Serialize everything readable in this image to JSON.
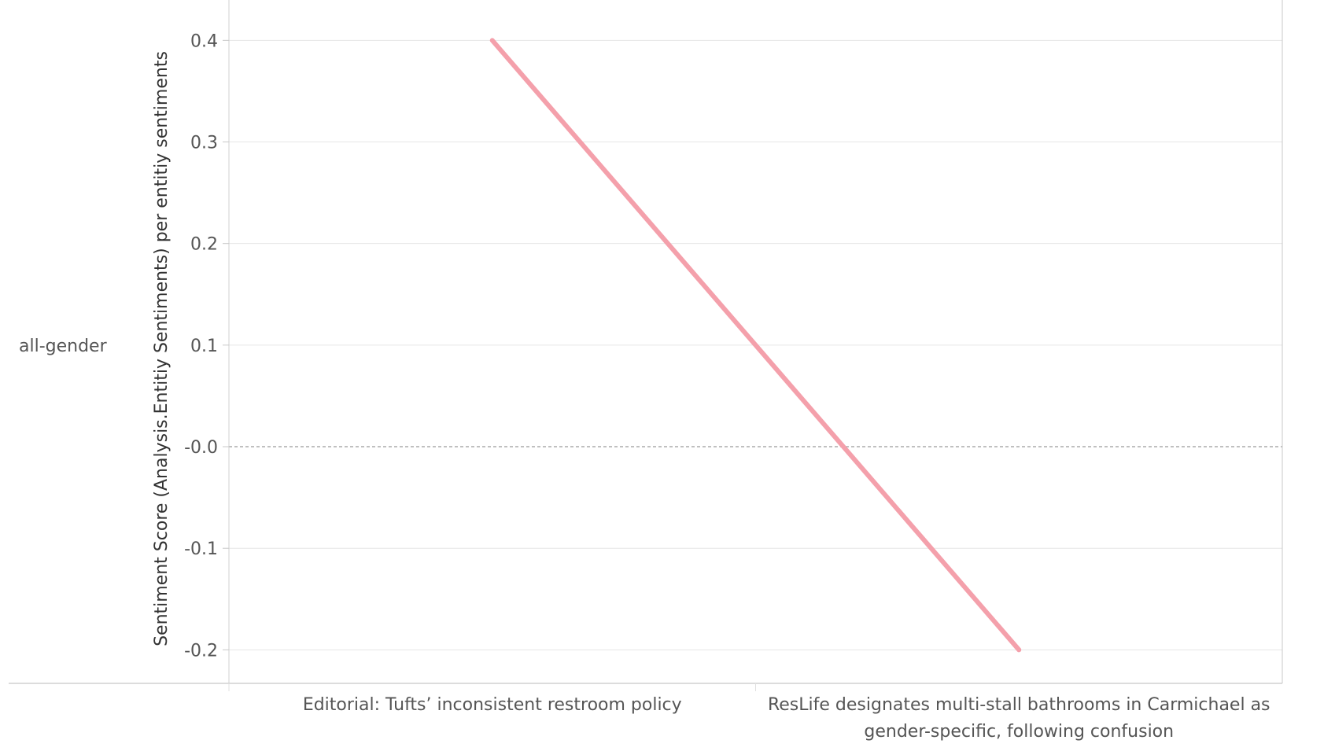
{
  "chart_data": {
    "type": "line",
    "row_label": "all-gender",
    "ylabel": "Sentiment Score (Analysis.Entitiy Sentiments) per entitiy sentiments",
    "xlabel": "",
    "categories": [
      "Editorial: Tufts’ inconsistent restroom policy",
      "ResLife designates multi-stall bathrooms in Carmichael as gender-specific, following confusion"
    ],
    "category_label_lines": [
      [
        "Editorial: Tufts’ inconsistent restroom policy"
      ],
      [
        "ResLife designates multi-stall bathrooms in Carmichael as",
        "gender-specific, following confusion"
      ]
    ],
    "series": [
      {
        "values": [
          0.4,
          -0.2
        ],
        "color": "#f4a0ab"
      }
    ],
    "y_ticks": [
      0.4,
      0.3,
      0.2,
      0.1,
      0.0,
      -0.1,
      -0.2
    ],
    "y_tick_labels": [
      "0.4",
      "0.3",
      "0.2",
      "0.1",
      "-0.0",
      "-0.1",
      "-0.2"
    ],
    "ylim": [
      -0.233,
      0.432
    ],
    "zero_line": "dashed",
    "grid": true,
    "legend": "none"
  }
}
